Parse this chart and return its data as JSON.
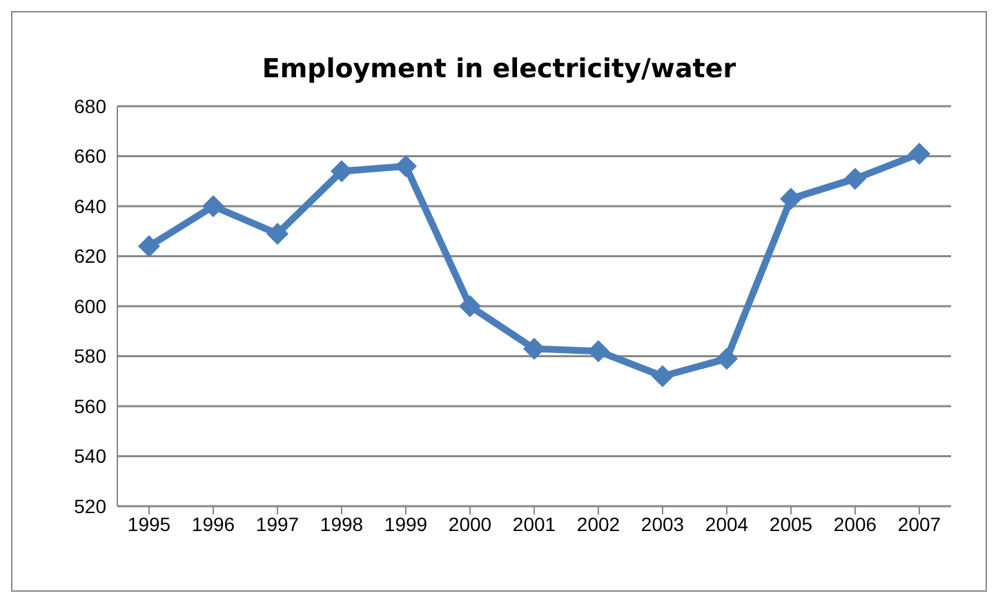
{
  "chart_data": {
    "type": "line",
    "title": "Employment in electricity/water",
    "categories": [
      "1995",
      "1996",
      "1997",
      "1998",
      "1999",
      "2000",
      "2001",
      "2002",
      "2003",
      "2004",
      "2005",
      "2006",
      "2007"
    ],
    "series": [
      {
        "color": "#4a7ebb",
        "values": [
          624,
          640,
          629,
          654,
          656,
          600,
          583,
          582,
          572,
          579,
          643,
          651,
          661
        ]
      }
    ],
    "ylim": [
      520,
      680
    ],
    "yticks": [
      520,
      540,
      560,
      580,
      600,
      620,
      640,
      660,
      680
    ],
    "grid": "y",
    "legend": false,
    "marker": "diamond",
    "line_style": "solid"
  }
}
